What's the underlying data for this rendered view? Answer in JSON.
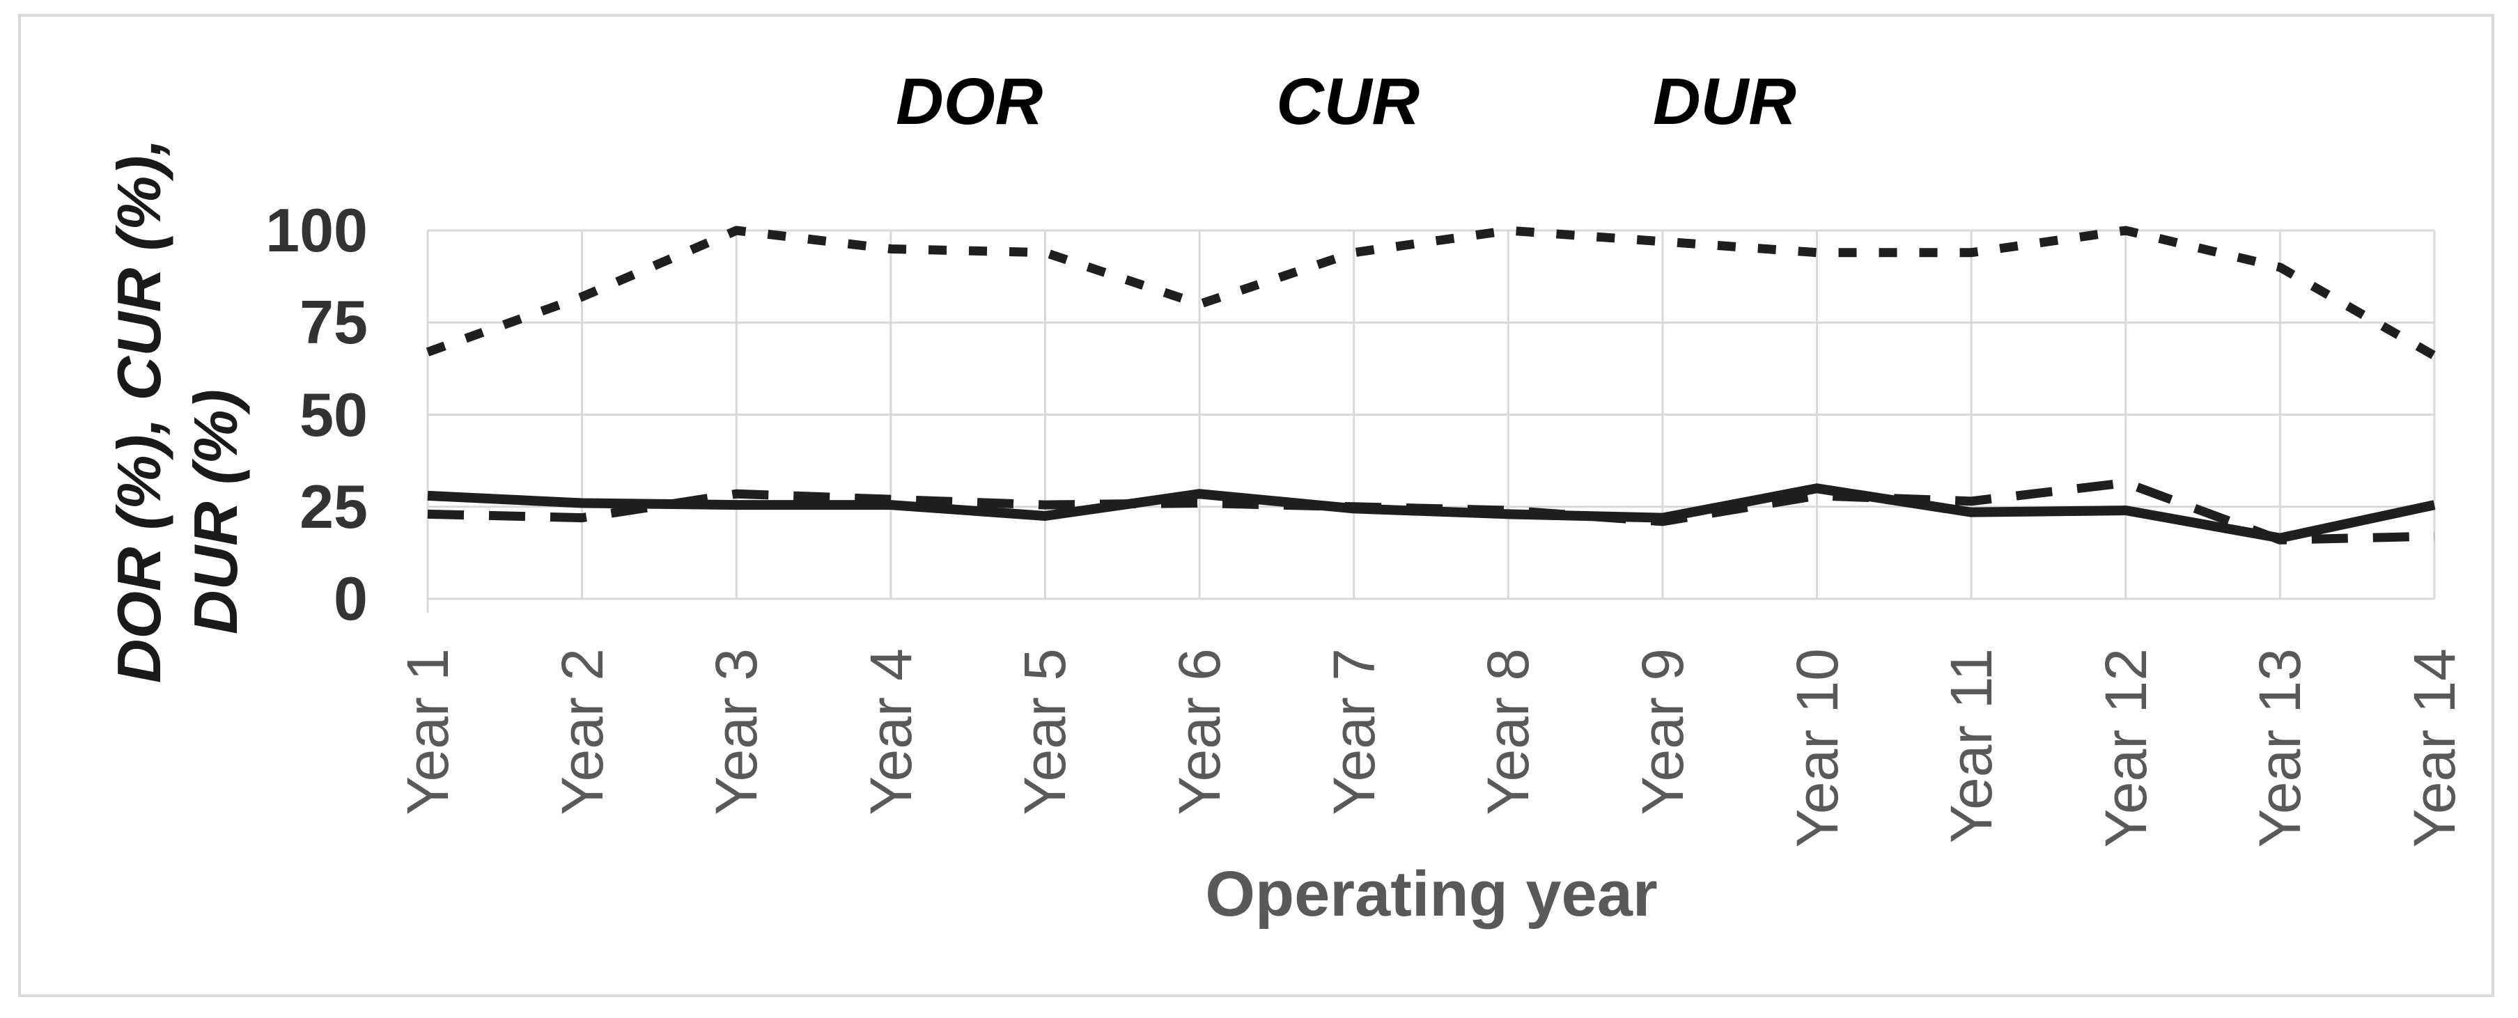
{
  "chart_data": {
    "type": "line",
    "title": "",
    "xlabel": "Operating year",
    "ylabel_line1": "DOR (%), CUR (%),",
    "ylabel_line2": "DUR (%)",
    "categories": [
      "Year 1",
      "Year 2",
      "Year 3",
      "Year 4",
      "Year 5",
      "Year 6",
      "Year 7",
      "Year 8",
      "Year 9",
      "Year 10",
      "Year 11",
      "Year 12",
      "Year 13",
      "Year 14"
    ],
    "yticks": [
      0,
      25,
      50,
      75,
      100
    ],
    "ylim": [
      0,
      100
    ],
    "grid": true,
    "legend_position": "top-center",
    "series": [
      {
        "name": "DOR",
        "dash": "dotted",
        "values": [
          67,
          82,
          100,
          95,
          94,
          80,
          94,
          100,
          97,
          94,
          94,
          100,
          90,
          66
        ]
      },
      {
        "name": "CUR",
        "dash": "solid",
        "values": [
          28,
          26,
          25.5,
          25.5,
          22.5,
          28.5,
          24.5,
          23,
          22,
          30,
          23.5,
          24,
          16.5,
          25.5
        ]
      },
      {
        "name": "DUR",
        "dash": "dashed",
        "values": [
          23,
          22,
          28.5,
          27,
          25.5,
          26,
          25,
          24,
          21,
          28,
          26.5,
          31.5,
          16,
          17
        ]
      }
    ],
    "colors": {
      "line": "#1f1f1f",
      "grid": "#d9d9d9",
      "frame_border": "#d9d9d9",
      "background": "#ffffff",
      "tick_label": "#333333",
      "category_label": "#595959",
      "axis_title": "#595959",
      "y_axis_title": "#1a1a1a",
      "legend_text": "#000000"
    }
  }
}
